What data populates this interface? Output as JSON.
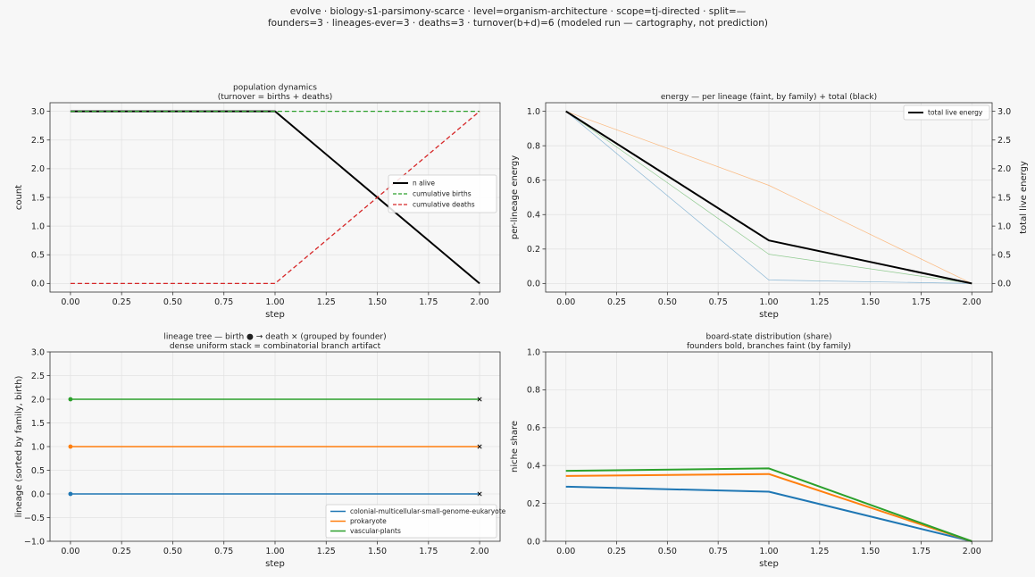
{
  "suptitle": [
    "evolve · biology-s1-parsimony-scarce · level=organism-architecture · scope=tj-directed · split=—",
    "founders=3 · lineages-ever=3 · deaths=3 · turnover(b+d)=6   (modeled run — cartography, not prediction)"
  ],
  "colors": {
    "blue": "#1f77b4",
    "orange": "#ff7f0e",
    "green": "#2ca02c",
    "red": "#d62728",
    "black": "#000000"
  },
  "chart_data": [
    {
      "id": "population",
      "type": "line",
      "title": [
        "population dynamics",
        "(turnover = births + deaths)"
      ],
      "xlabel": "step",
      "ylabel": "count",
      "xlim": [
        -0.1,
        2.1
      ],
      "ylim": [
        -0.15,
        3.15
      ],
      "xticks": [
        0,
        0.25,
        0.5,
        0.75,
        1,
        1.25,
        1.5,
        1.75,
        2
      ],
      "xtick_labels": [
        "0.00",
        "0.25",
        "0.50",
        "0.75",
        "1.00",
        "1.25",
        "1.50",
        "1.75",
        "2.00"
      ],
      "yticks": [
        0,
        0.5,
        1,
        1.5,
        2,
        2.5,
        3
      ],
      "ytick_labels": [
        "0.0",
        "0.5",
        "1.0",
        "1.5",
        "2.0",
        "2.5",
        "3.0"
      ],
      "grid": true,
      "legend": "center-right",
      "series": [
        {
          "name": "n alive",
          "x": [
            0,
            1,
            2
          ],
          "y": [
            3,
            3,
            0
          ],
          "color": "#000000",
          "style": "solid",
          "width": 2
        },
        {
          "name": "cumulative births",
          "x": [
            0,
            1,
            2
          ],
          "y": [
            3,
            3,
            3
          ],
          "color": "#2ca02c",
          "style": "dashed",
          "width": 1.3
        },
        {
          "name": "cumulative deaths",
          "x": [
            0,
            1,
            2
          ],
          "y": [
            0,
            0,
            3
          ],
          "color": "#d62728",
          "style": "dashed",
          "width": 1.3
        }
      ]
    },
    {
      "id": "energy",
      "type": "line",
      "title": [
        "energy — per lineage (faint, by family) + total (black)"
      ],
      "xlabel": "step",
      "ylabel": "per-lineage energy",
      "ylabel_right": "total live energy",
      "xlim": [
        -0.1,
        2.1
      ],
      "ylim": [
        -0.05,
        1.05
      ],
      "ylim_right": [
        -0.15,
        3.15
      ],
      "xticks": [
        0,
        0.25,
        0.5,
        0.75,
        1,
        1.25,
        1.5,
        1.75,
        2
      ],
      "xtick_labels": [
        "0.00",
        "0.25",
        "0.50",
        "0.75",
        "1.00",
        "1.25",
        "1.50",
        "1.75",
        "2.00"
      ],
      "yticks": [
        0,
        0.2,
        0.4,
        0.6,
        0.8,
        1.0
      ],
      "ytick_labels": [
        "0.0",
        "0.2",
        "0.4",
        "0.6",
        "0.8",
        "1.0"
      ],
      "yticks_right": [
        0,
        0.5,
        1,
        1.5,
        2,
        2.5,
        3
      ],
      "ytick_labels_right": [
        "0.0",
        "0.5",
        "1.0",
        "1.5",
        "2.0",
        "2.5",
        "3.0"
      ],
      "grid": true,
      "legend": "top-right",
      "series": [
        {
          "name": "colonial-multicellular-small-genome-eukaryote",
          "x": [
            0,
            1,
            2
          ],
          "y": [
            1.0,
            0.02,
            0.0
          ],
          "color": "#1f77b4",
          "faint": true,
          "axis": "left"
        },
        {
          "name": "prokaryote",
          "x": [
            0,
            1,
            2
          ],
          "y": [
            1.0,
            0.57,
            0.0
          ],
          "color": "#ff7f0e",
          "faint": true,
          "axis": "left"
        },
        {
          "name": "vascular-plants",
          "x": [
            0,
            1,
            2
          ],
          "y": [
            1.0,
            0.17,
            0.0
          ],
          "color": "#2ca02c",
          "faint": true,
          "axis": "left"
        },
        {
          "name": "total live energy",
          "x": [
            0,
            1,
            2
          ],
          "y": [
            3.0,
            0.75,
            0.0
          ],
          "color": "#000000",
          "axis": "right",
          "legend": true
        }
      ]
    },
    {
      "id": "lineage-tree",
      "type": "line",
      "title": [
        "lineage tree — birth ● → death ×  (grouped by founder)",
        "dense uniform stack = combinatorial branch artifact"
      ],
      "xlabel": "step",
      "ylabel": "lineage (sorted by family, birth)",
      "xlim": [
        -0.1,
        2.1
      ],
      "ylim": [
        -1.0,
        3.0
      ],
      "xticks": [
        0,
        0.25,
        0.5,
        0.75,
        1,
        1.25,
        1.5,
        1.75,
        2
      ],
      "xtick_labels": [
        "0.00",
        "0.25",
        "0.50",
        "0.75",
        "1.00",
        "1.25",
        "1.50",
        "1.75",
        "2.00"
      ],
      "yticks": [
        -1,
        -0.5,
        0,
        0.5,
        1,
        1.5,
        2,
        2.5,
        3
      ],
      "ytick_labels": [
        "−1.0",
        "−0.5",
        "0.0",
        "0.5",
        "1.0",
        "1.5",
        "2.0",
        "2.5",
        "3.0"
      ],
      "grid": true,
      "legend": "bottom-right",
      "series": [
        {
          "name": "colonial-multicellular-small-genome-eukaryote",
          "lineage": 0,
          "birth": 0,
          "death": 2,
          "color": "#1f77b4"
        },
        {
          "name": "prokaryote",
          "lineage": 1,
          "birth": 0,
          "death": 2,
          "color": "#ff7f0e"
        },
        {
          "name": "vascular-plants",
          "lineage": 2,
          "birth": 0,
          "death": 2,
          "color": "#2ca02c"
        }
      ]
    },
    {
      "id": "board-state",
      "type": "line",
      "title": [
        "board-state distribution (share)",
        "founders bold, branches faint (by family)"
      ],
      "xlabel": "step",
      "ylabel": "niche share",
      "xlim": [
        -0.1,
        2.1
      ],
      "ylim": [
        0.0,
        1.0
      ],
      "xticks": [
        0,
        0.25,
        0.5,
        0.75,
        1,
        1.25,
        1.5,
        1.75,
        2
      ],
      "xtick_labels": [
        "0.00",
        "0.25",
        "0.50",
        "0.75",
        "1.00",
        "1.25",
        "1.50",
        "1.75",
        "2.00"
      ],
      "yticks": [
        0,
        0.2,
        0.4,
        0.6,
        0.8,
        1.0
      ],
      "ytick_labels": [
        "0.0",
        "0.2",
        "0.4",
        "0.6",
        "0.8",
        "1.0"
      ],
      "grid": true,
      "series": [
        {
          "x": [
            0,
            1,
            2
          ],
          "y": [
            0.288,
            0.262,
            0.0
          ],
          "color": "#1f77b4"
        },
        {
          "x": [
            0,
            1,
            2
          ],
          "y": [
            0.345,
            0.355,
            0.0
          ],
          "color": "#ff7f0e"
        },
        {
          "x": [
            0,
            1,
            2
          ],
          "y": [
            0.372,
            0.385,
            0.0
          ],
          "color": "#2ca02c"
        }
      ]
    }
  ]
}
